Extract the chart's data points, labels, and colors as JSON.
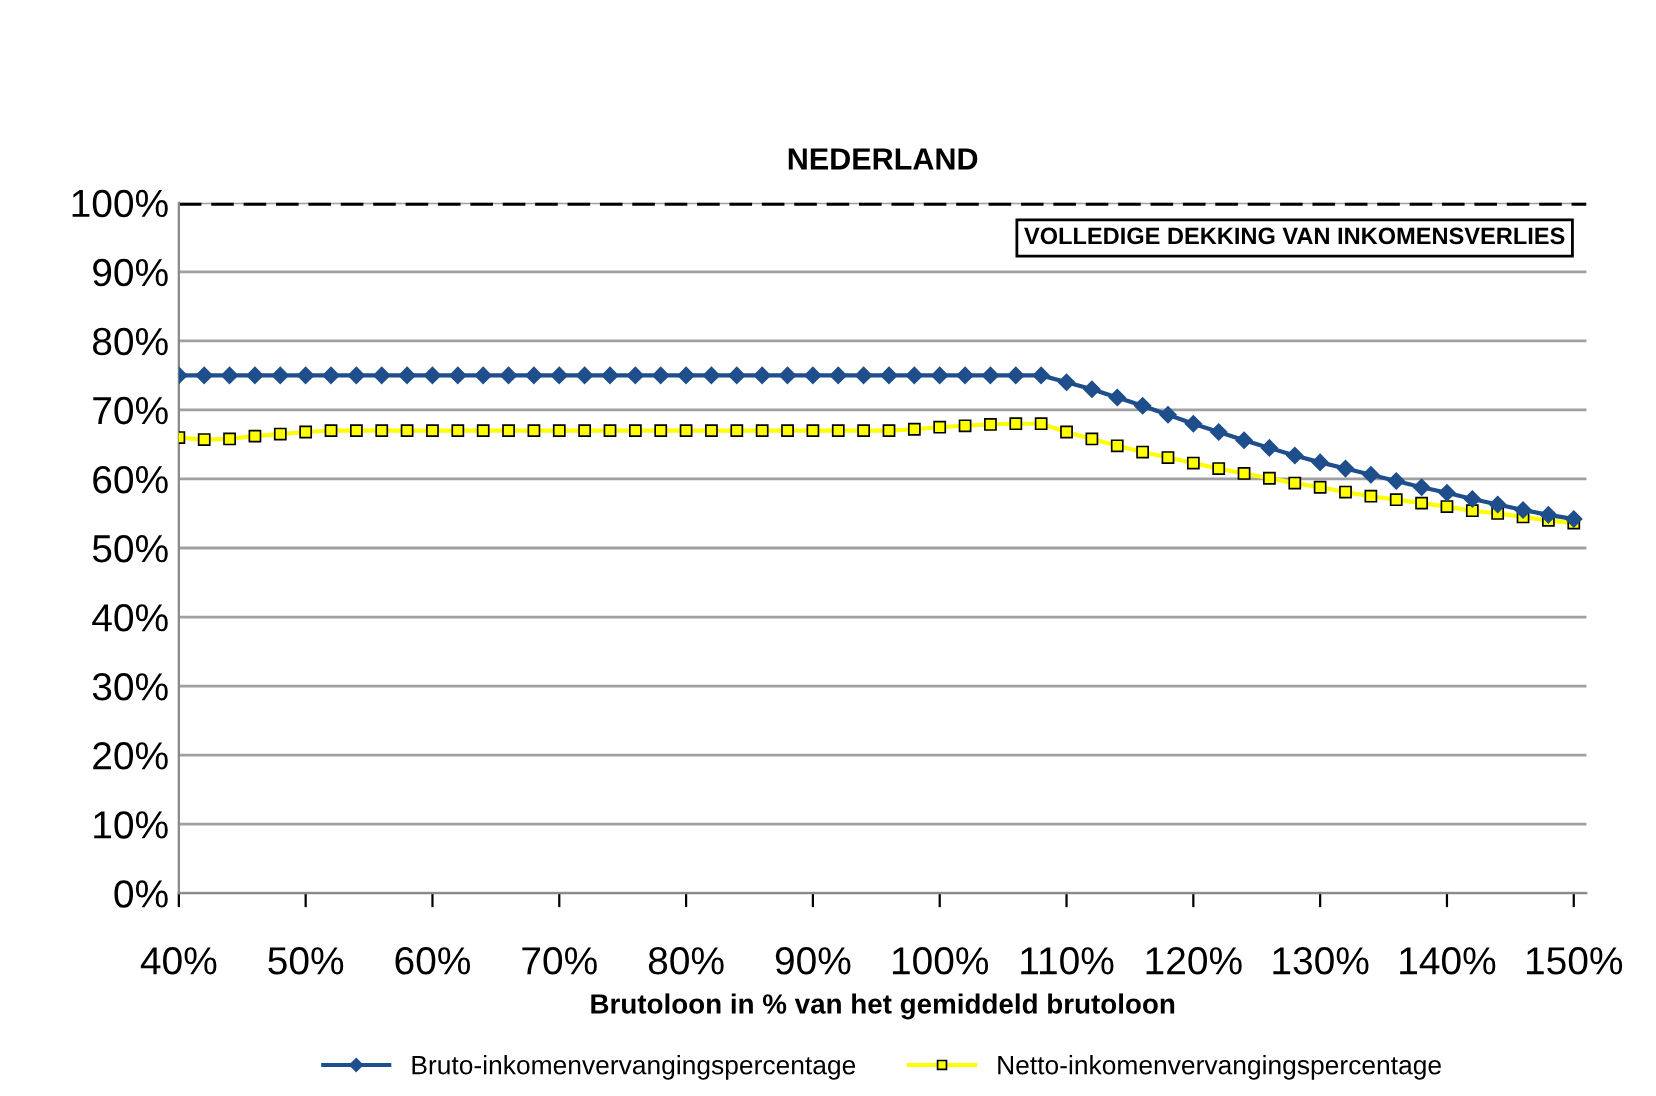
{
  "chart_data": {
    "type": "line",
    "title": "NEDERLAND",
    "xlabel": "Brutoloon in % van het gemiddeld brutoloon",
    "x": [
      40,
      42,
      44,
      46,
      48,
      50,
      52,
      54,
      56,
      58,
      60,
      62,
      64,
      66,
      68,
      70,
      72,
      74,
      76,
      78,
      80,
      82,
      84,
      86,
      88,
      90,
      92,
      94,
      96,
      98,
      100,
      102,
      104,
      106,
      108,
      110,
      112,
      114,
      116,
      118,
      120,
      122,
      124,
      126,
      128,
      130,
      132,
      134,
      136,
      138,
      140,
      142,
      144,
      146,
      148,
      150
    ],
    "series": [
      {
        "name": "Bruto-inkomenvervangingspercentage",
        "color": "#1f4e8c",
        "marker": "diamond",
        "values": [
          75,
          75,
          75,
          75,
          75,
          75,
          75,
          75,
          75,
          75,
          75,
          75,
          75,
          75,
          75,
          75,
          75,
          75,
          75,
          75,
          75,
          75,
          75,
          75,
          75,
          75,
          75,
          75,
          75,
          75,
          75,
          75,
          75,
          75,
          75,
          74,
          73,
          71.8,
          70.6,
          69.3,
          68,
          66.8,
          65.6,
          64.5,
          63.4,
          62.4,
          61.5,
          60.6,
          59.7,
          58.8,
          58,
          57.1,
          56.3,
          55.5,
          54.8,
          54.2
        ]
      },
      {
        "name": "Netto-inkomenvervangingspercentage",
        "color": "#ffff00",
        "marker": "square",
        "values": [
          66,
          65.7,
          65.8,
          66.2,
          66.5,
          66.8,
          67,
          67,
          67,
          67,
          67,
          67,
          67,
          67,
          67,
          67,
          67,
          67,
          67,
          67,
          67,
          67,
          67,
          67,
          67,
          67,
          67,
          67,
          67,
          67.2,
          67.5,
          67.7,
          67.9,
          68,
          68,
          66.8,
          65.8,
          64.8,
          63.9,
          63.1,
          62.3,
          61.5,
          60.8,
          60.1,
          59.4,
          58.8,
          58.1,
          57.5,
          57,
          56.5,
          56,
          55.4,
          55,
          54.5,
          54,
          53.6
        ]
      }
    ],
    "xlim": [
      40,
      151
    ],
    "xticks": [
      {
        "value": 40,
        "label": "40%"
      },
      {
        "value": 50,
        "label": "50%"
      },
      {
        "value": 60,
        "label": "60%"
      },
      {
        "value": 70,
        "label": "70%"
      },
      {
        "value": 80,
        "label": "80%"
      },
      {
        "value": 90,
        "label": "90%"
      },
      {
        "value": 100,
        "label": "100%"
      },
      {
        "value": 110,
        "label": "110%"
      },
      {
        "value": 120,
        "label": "120%"
      },
      {
        "value": 130,
        "label": "130%"
      },
      {
        "value": 140,
        "label": "140%"
      },
      {
        "value": 150,
        "label": "150%"
      }
    ],
    "ylim": [
      0,
      100
    ],
    "yticks": [
      {
        "value": 0,
        "label": "0%"
      },
      {
        "value": 10,
        "label": "10%"
      },
      {
        "value": 20,
        "label": "20%"
      },
      {
        "value": 30,
        "label": "30%"
      },
      {
        "value": 40,
        "label": "40%"
      },
      {
        "value": 50,
        "label": "50%"
      },
      {
        "value": 60,
        "label": "60%"
      },
      {
        "value": 70,
        "label": "70%"
      },
      {
        "value": 80,
        "label": "80%"
      },
      {
        "value": 90,
        "label": "90%"
      },
      {
        "value": 100,
        "label": "100%"
      }
    ],
    "ref_lines": [
      {
        "axis": "y",
        "value": 100,
        "label": "VOLLEDIGE DEKKING VAN INKOMENSVERLIES",
        "color": "#000000",
        "line_style": "dashed"
      }
    ],
    "grid": "y",
    "legend": "bottom",
    "line_style": "solid"
  }
}
